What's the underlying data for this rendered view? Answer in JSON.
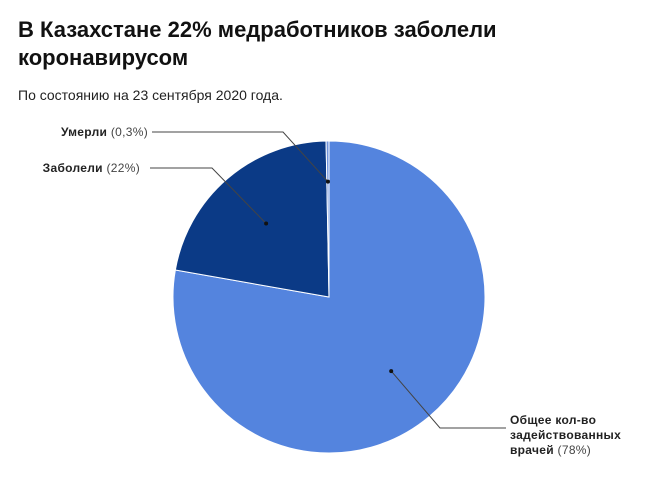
{
  "chart_data": {
    "type": "pie",
    "title": "В Казахстане 22% медработников заболели коронавирусом",
    "subtitle": "По состоянию на 23 сентября 2020 года.",
    "categories": [
      "Общее кол-во задействованных врачей",
      "Заболели",
      "Умерли"
    ],
    "values": [
      78,
      22,
      0.3
    ],
    "value_labels": [
      "(78%)",
      "(22%)",
      "(0,3%)"
    ],
    "colors": [
      "#5484de",
      "#0b3a86",
      "#6f93dc"
    ]
  }
}
